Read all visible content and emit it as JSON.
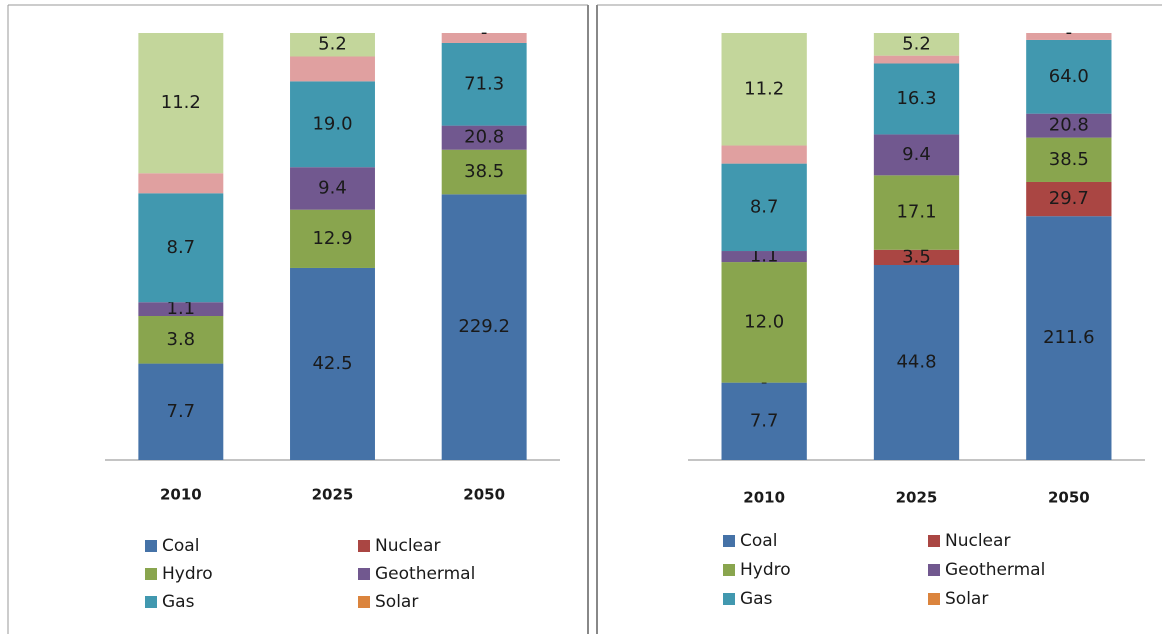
{
  "chart_data": [
    {
      "type": "bar",
      "stacking": "percent",
      "categories": [
        "2010",
        "2025",
        "2050"
      ],
      "series": [
        {
          "name": "Coal",
          "color": "#4572a7",
          "values": [
            7.7,
            42.5,
            229.2
          ],
          "value_labels": [
            "7.7",
            "42.5",
            "229.2"
          ]
        },
        {
          "name": "Nuclear",
          "color": "#aa4643",
          "values": [
            0,
            0,
            0
          ],
          "value_labels": [
            null,
            null,
            null
          ]
        },
        {
          "name": "Hydro",
          "color": "#89a54e",
          "values": [
            3.8,
            12.9,
            38.5
          ],
          "value_labels": [
            "3.8",
            "12.9",
            "38.5"
          ]
        },
        {
          "name": "Geothermal",
          "color": "#71588f",
          "values": [
            1.1,
            9.4,
            20.8
          ],
          "value_labels": [
            "1.1",
            "9.4",
            "20.8"
          ]
        },
        {
          "name": "Gas",
          "color": "#4198af",
          "values": [
            8.7,
            19.0,
            71.3
          ],
          "value_labels": [
            "8.7",
            "19.0",
            "71.3"
          ]
        },
        {
          "name": "Solar",
          "color": "#db843d",
          "values": [
            0,
            0,
            0
          ],
          "value_labels": [
            null,
            null,
            null
          ]
        },
        {
          "name": null,
          "color": "#e0a0a0",
          "values": [
            1.6,
            5.5,
            8.6
          ],
          "value_labels": [
            null,
            null,
            null
          ]
        },
        {
          "name": null,
          "color": "#c3d69b",
          "values": [
            11.2,
            5.2,
            0
          ],
          "value_labels": [
            "11.2",
            "5.2",
            "-"
          ]
        }
      ]
    },
    {
      "type": "bar",
      "stacking": "percent",
      "categories": [
        "2010",
        "2025",
        "2050"
      ],
      "series": [
        {
          "name": "Coal",
          "color": "#4572a7",
          "values": [
            7.7,
            44.8,
            211.6
          ],
          "value_labels": [
            "7.7",
            "44.8",
            "211.6"
          ]
        },
        {
          "name": "Nuclear",
          "color": "#aa4643",
          "values": [
            0,
            3.5,
            29.7
          ],
          "value_labels": [
            "-",
            "3.5",
            "29.7"
          ]
        },
        {
          "name": "Hydro",
          "color": "#89a54e",
          "values": [
            12.0,
            17.1,
            38.5
          ],
          "value_labels": [
            "12.0",
            "17.1",
            "38.5"
          ]
        },
        {
          "name": "Geothermal",
          "color": "#71588f",
          "values": [
            1.1,
            9.4,
            20.8
          ],
          "value_labels": [
            "1.1",
            "9.4",
            "20.8"
          ]
        },
        {
          "name": "Gas",
          "color": "#4198af",
          "values": [
            8.7,
            16.3,
            64.0
          ],
          "value_labels": [
            "8.7",
            "16.3",
            "64.0"
          ]
        },
        {
          "name": "Solar",
          "color": "#db843d",
          "values": [
            0,
            0,
            0
          ],
          "value_labels": [
            null,
            null,
            null
          ]
        },
        {
          "name": null,
          "color": "#e0a0a0",
          "values": [
            1.8,
            1.8,
            6.0
          ],
          "value_labels": [
            null,
            null,
            null
          ]
        },
        {
          "name": null,
          "color": "#c3d69b",
          "values": [
            11.2,
            5.2,
            0
          ],
          "value_labels": [
            "11.2",
            "5.2",
            "-"
          ]
        }
      ]
    }
  ]
}
